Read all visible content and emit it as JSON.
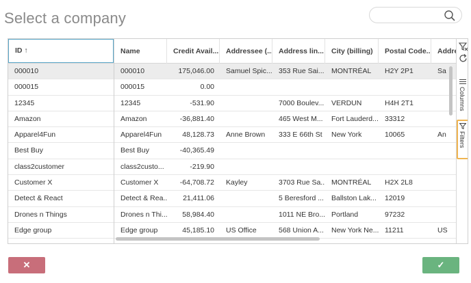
{
  "dialog": {
    "title": "Select a company"
  },
  "search": {
    "placeholder": ""
  },
  "grid": {
    "pinned_header": "ID ↑",
    "headers": [
      "Name",
      "Credit Avail...",
      "Addressee (...",
      "Address lin...",
      "City (billing)",
      "Postal Code...",
      "Addre"
    ],
    "rows": [
      {
        "id": "000010",
        "name": "000010",
        "credit": "175,046.00",
        "addressee": "Samuel Spic...",
        "address": "353 Rue Sai...",
        "city": "MONTRÉAL",
        "postal": "H2Y 2P1",
        "addr2": "Sa"
      },
      {
        "id": "000015",
        "name": "000015",
        "credit": "0.00",
        "addressee": "",
        "address": "",
        "city": "",
        "postal": "",
        "addr2": ""
      },
      {
        "id": "12345",
        "name": "12345",
        "credit": "-531.90",
        "addressee": "",
        "address": "7000 Boulev...",
        "city": "VERDUN",
        "postal": "H4H 2T1",
        "addr2": ""
      },
      {
        "id": "Amazon",
        "name": "Amazon",
        "credit": "-36,881.40",
        "addressee": "",
        "address": "465 West M...",
        "city": "Fort Lauderd...",
        "postal": "33312",
        "addr2": ""
      },
      {
        "id": "Apparel4Fun",
        "name": "Apparel4Fun",
        "credit": "48,128.73",
        "addressee": "Anne Brown",
        "address": "333 E 66th St",
        "city": "New York",
        "postal": "10065",
        "addr2": "An"
      },
      {
        "id": "Best Buy",
        "name": "Best Buy",
        "credit": "-40,365.49",
        "addressee": "",
        "address": "",
        "city": "",
        "postal": "",
        "addr2": ""
      },
      {
        "id": "class2customer",
        "name": "class2custo...",
        "credit": "-219.90",
        "addressee": "",
        "address": "",
        "city": "",
        "postal": "",
        "addr2": ""
      },
      {
        "id": "Customer X",
        "name": "Customer X",
        "credit": "-64,708.72",
        "addressee": "Kayley",
        "address": "3703 Rue Sa...",
        "city": "MONTRÉAL",
        "postal": "H2X 2L8",
        "addr2": ""
      },
      {
        "id": "Detect & React",
        "name": "Detect & Rea...",
        "credit": "21,411.06",
        "addressee": "",
        "address": "5 Beresford ...",
        "city": "Ballston Lak...",
        "postal": "12019",
        "addr2": ""
      },
      {
        "id": "Drones n Things",
        "name": "Drones n Thi...",
        "credit": "58,984.40",
        "addressee": "",
        "address": "1011 NE Bro...",
        "city": "Portland",
        "postal": "97232",
        "addr2": ""
      },
      {
        "id": "Edge group",
        "name": "Edge group",
        "credit": "45,185.10",
        "addressee": "US Office",
        "address": "568 Union A...",
        "city": "New York Ne...",
        "postal": "11211",
        "addr2": "US"
      }
    ]
  },
  "sidebar": {
    "columns_label": "Columns",
    "filters_label": "Filters"
  },
  "buttons": {
    "cancel_symbol": "✕",
    "ok_symbol": "✓"
  },
  "colors": {
    "cancel": "#c86e7a",
    "ok": "#6ab47f",
    "focus": "#5aa7c9",
    "highlight": "#f0b450"
  }
}
